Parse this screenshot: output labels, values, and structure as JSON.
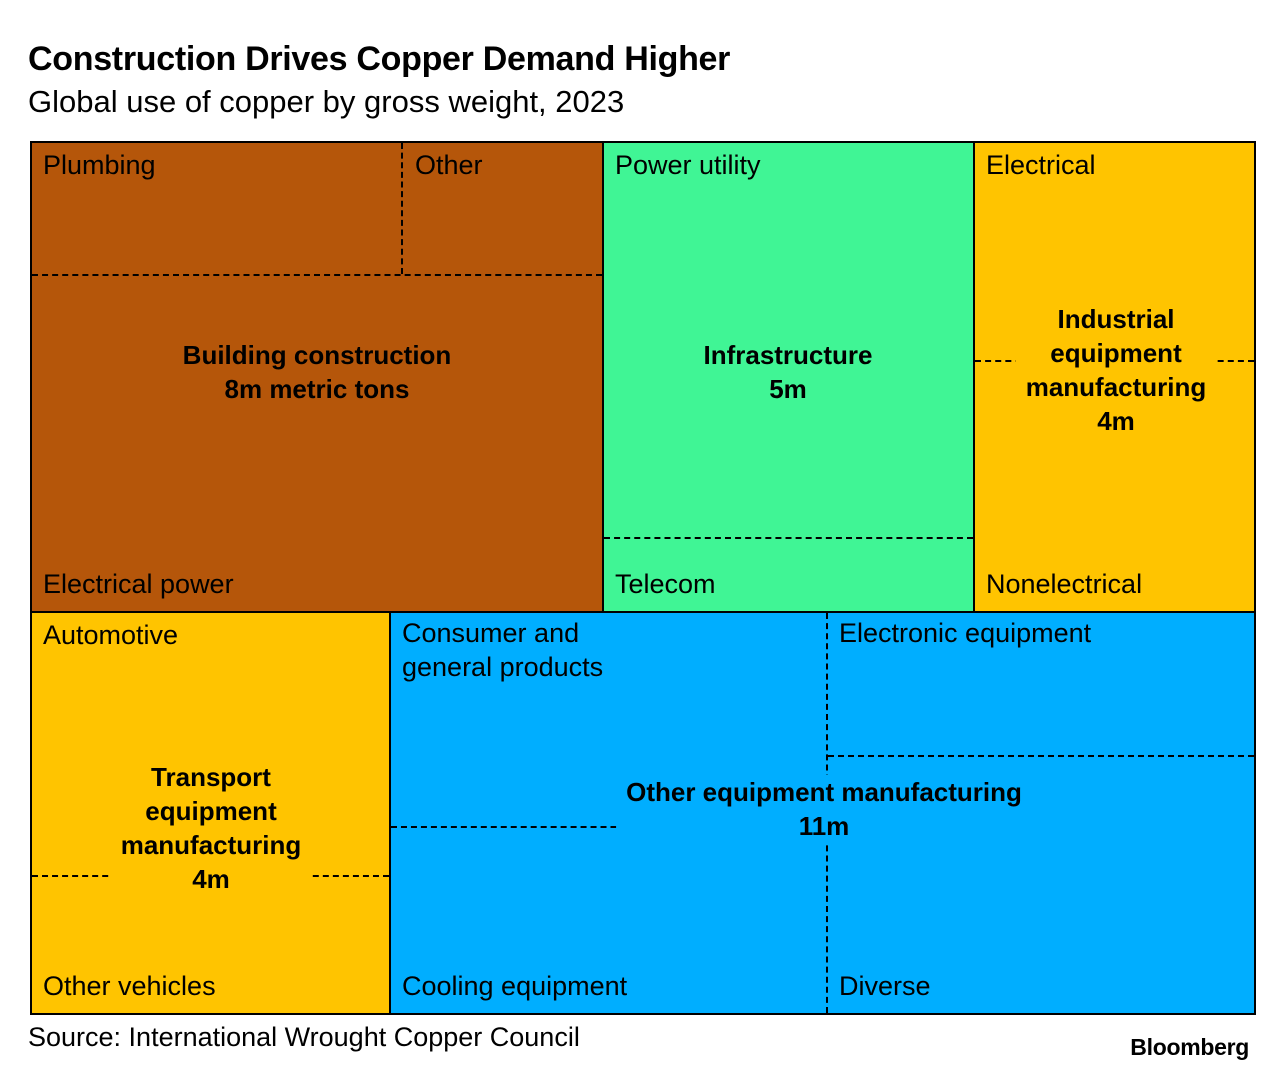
{
  "title": "Construction Drives Copper Demand Higher",
  "subtitle": "Global use of copper by gross weight, 2023",
  "source": "Source: International Wrought Copper Council",
  "brand": "Bloomberg",
  "chart_data": {
    "type": "treemap",
    "title": "Construction Drives Copper Demand Higher",
    "subtitle": "Global use of copper by gross weight, 2023",
    "unit": "metric tons",
    "categories": [
      {
        "name": "Building construction",
        "value_label": "8m metric tons",
        "value": 8,
        "color": "#B5560A",
        "subcategories": [
          "Plumbing",
          "Other",
          "Electrical power"
        ]
      },
      {
        "name": "Infrastructure",
        "value_label": "5m",
        "value": 5,
        "color": "#40F595",
        "subcategories": [
          "Power utility",
          "Telecom"
        ]
      },
      {
        "name": "Industrial equipment manufacturing",
        "value_label": "4m",
        "value": 4,
        "color": "#FFC400",
        "subcategories": [
          "Electrical",
          "Nonelectrical"
        ]
      },
      {
        "name": "Transport equipment manufacturing",
        "value_label": "4m",
        "value": 4,
        "color": "#FFC400",
        "subcategories": [
          "Automotive",
          "Other vehicles"
        ]
      },
      {
        "name": "Other equipment manufacturing",
        "value_label": "11m",
        "value": 11,
        "color": "#00AEFF",
        "subcategories": [
          "Consumer and general products",
          "Electronic equipment",
          "Cooling equipment",
          "Diverse"
        ]
      }
    ]
  },
  "labels": {
    "building": {
      "main": [
        "Building construction",
        "8m metric tons"
      ],
      "plumbing": "Plumbing",
      "other": "Other",
      "electrical_power": "Electrical power"
    },
    "infrastructure": {
      "main": [
        "Infrastructure",
        "5m"
      ],
      "power_utility": "Power utility",
      "telecom": "Telecom"
    },
    "industrial": {
      "main": [
        "Industrial",
        "equipment",
        "manufacturing",
        "4m"
      ],
      "electrical": "Electrical",
      "nonelectrical": "Nonelectrical"
    },
    "transport": {
      "main": [
        "Transport",
        "equipment",
        "manufacturing",
        "4m"
      ],
      "automotive": "Automotive",
      "other_vehicles": "Other vehicles"
    },
    "other_equipment": {
      "main": [
        "Other equipment manufacturing",
        "11m"
      ],
      "consumer": [
        "Consumer and",
        "general products"
      ],
      "electronic": "Electronic equipment",
      "cooling": "Cooling equipment",
      "diverse": "Diverse"
    }
  }
}
